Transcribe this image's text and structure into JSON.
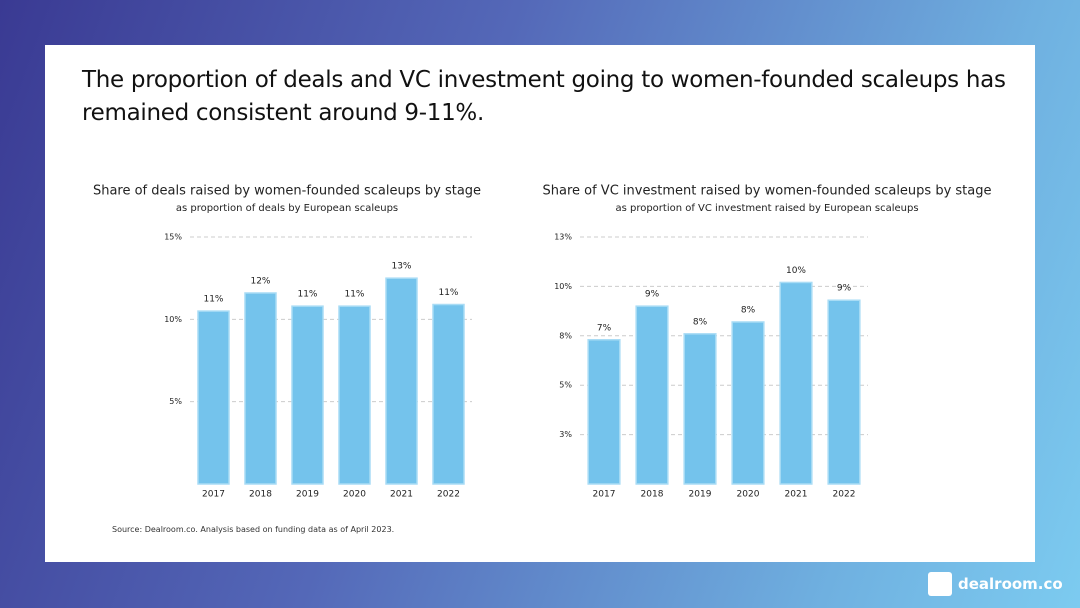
{
  "title": "The proportion of deals and VC investment going to women-founded scaleups has remained consistent around 9-11%.",
  "source": "Source: Dealroom.co. Analysis based on funding data as of April 2023.",
  "brand": "dealroom.co",
  "chart_data": [
    {
      "type": "bar",
      "title": "Share of deals raised by women-founded scaleups by stage",
      "subtitle": "as proportion  of deals by European scaleups",
      "categories": [
        "2017",
        "2018",
        "2019",
        "2020",
        "2021",
        "2022"
      ],
      "values": [
        10.5,
        11.6,
        10.8,
        10.8,
        12.5,
        10.9
      ],
      "value_labels": [
        "11%",
        "12%",
        "11%",
        "11%",
        "13%",
        "11%"
      ],
      "color": "#74c3ec",
      "ylim": [
        0,
        15
      ],
      "yticks": [
        {
          "value": 5,
          "label": "5%"
        },
        {
          "value": 10,
          "label": "10%"
        },
        {
          "value": 15,
          "label": "15%"
        }
      ],
      "grid": true
    },
    {
      "type": "bar",
      "title": "Share of VC investment raised by women-founded scaleups by stage",
      "subtitle": "as proportion  of VC investment raised by European scaleups",
      "categories": [
        "2017",
        "2018",
        "2019",
        "2020",
        "2021",
        "2022"
      ],
      "values": [
        7.3,
        9.0,
        7.6,
        8.2,
        10.2,
        9.3
      ],
      "value_labels": [
        "7%",
        "9%",
        "8%",
        "8%",
        "10%",
        "9%"
      ],
      "color": "#74c3ec",
      "ylim": [
        0,
        12.5
      ],
      "yticks": [
        {
          "value": 2.5,
          "label": "3%"
        },
        {
          "value": 5,
          "label": "5%"
        },
        {
          "value": 7.5,
          "label": "8%"
        },
        {
          "value": 10,
          "label": "10%"
        },
        {
          "value": 12.5,
          "label": "13%"
        }
      ],
      "grid": true
    }
  ]
}
